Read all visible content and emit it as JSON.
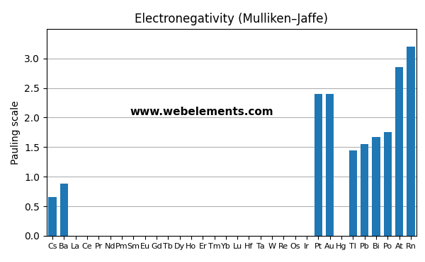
{
  "chart_data": {
    "type": "bar",
    "title": "Electronegativity (Mulliken–Jaffe)",
    "y_label": "Pauling scale",
    "categories": [
      "Cs",
      "Ba",
      "La",
      "Ce",
      "Pr",
      "Nd",
      "Pm",
      "Sm",
      "Eu",
      "Gd",
      "Tb",
      "Dy",
      "Ho",
      "Er",
      "Tm",
      "Yb",
      "Lu",
      "Hf",
      "Ta",
      "W",
      "Re",
      "Os",
      "Ir",
      "Pt",
      "Au",
      "Hg",
      "Tl",
      "Pb",
      "Bi",
      "Po",
      "At",
      "Rn"
    ],
    "values": [
      0.659,
      0.881,
      0.0,
      0.0,
      0.0,
      0.0,
      0.0,
      0.0,
      0.0,
      0.0,
      0.0,
      0.0,
      0.0,
      0.0,
      0.0,
      0.0,
      0.0,
      0.0,
      0.0,
      0.0,
      0.0,
      0.0,
      0.0,
      2.4,
      2.4,
      0.0,
      1.44,
      1.55,
      1.67,
      1.76,
      2.85,
      3.2
    ],
    "ylim": [
      0.0,
      3.5
    ],
    "yticks": [
      0.0,
      0.5,
      1.0,
      1.5,
      2.0,
      2.5,
      3.0
    ],
    "grid": true,
    "annotations": [
      "www.webelements.com"
    ]
  }
}
